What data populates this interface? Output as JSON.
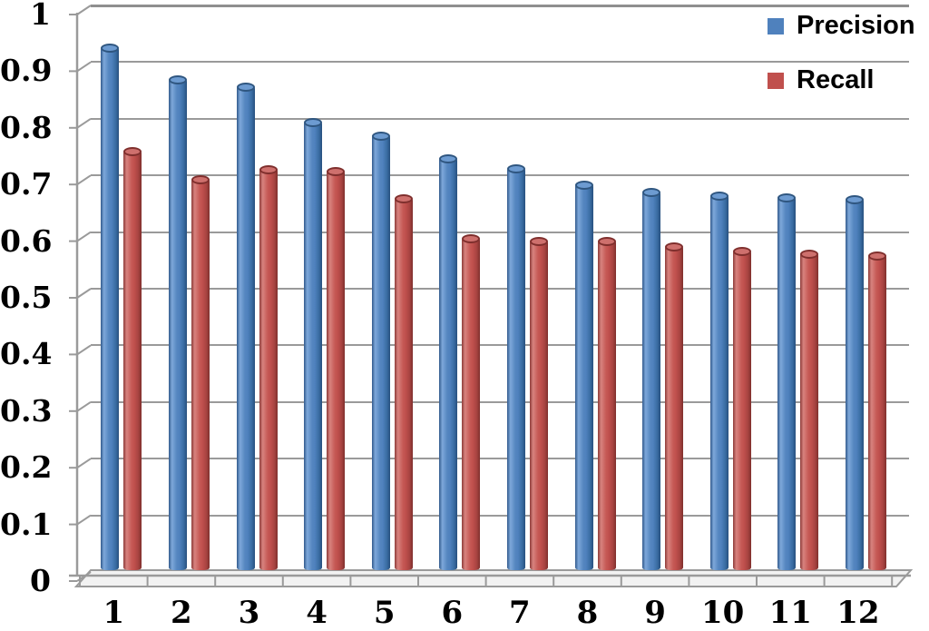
{
  "chart_data": {
    "type": "bar",
    "style": "3d-cylinder-excel",
    "title": "",
    "xlabel": "",
    "ylabel": "",
    "categories": [
      "1",
      "2",
      "3",
      "4",
      "5",
      "6",
      "7",
      "8",
      "9",
      "10",
      "11",
      "12"
    ],
    "series": [
      {
        "name": "Precision",
        "color": "#4F81BD",
        "values": [
          0.924,
          0.869,
          0.856,
          0.794,
          0.77,
          0.729,
          0.712,
          0.683,
          0.67,
          0.664,
          0.66,
          0.657
        ]
      },
      {
        "name": "Recall",
        "color": "#C0504D",
        "values": [
          0.742,
          0.692,
          0.71,
          0.706,
          0.658,
          0.588,
          0.584,
          0.583,
          0.574,
          0.566,
          0.561,
          0.558
        ]
      }
    ],
    "ylim": [
      0,
      1
    ],
    "ytick_labels": [
      "0",
      "0.1",
      "0.2",
      "0.3",
      "0.4",
      "0.5",
      "0.6",
      "0.7",
      "0.8",
      "0.9",
      "1"
    ],
    "grid": "horizontal-major-0.1",
    "gridline_color": "#9A9A9A",
    "background": "#FFFFFF",
    "legend_position": "top-right"
  },
  "legend": {
    "items": [
      {
        "label": "Precision",
        "color": "#4F81BD"
      },
      {
        "label": "Recall",
        "color": "#C0504D"
      }
    ]
  }
}
